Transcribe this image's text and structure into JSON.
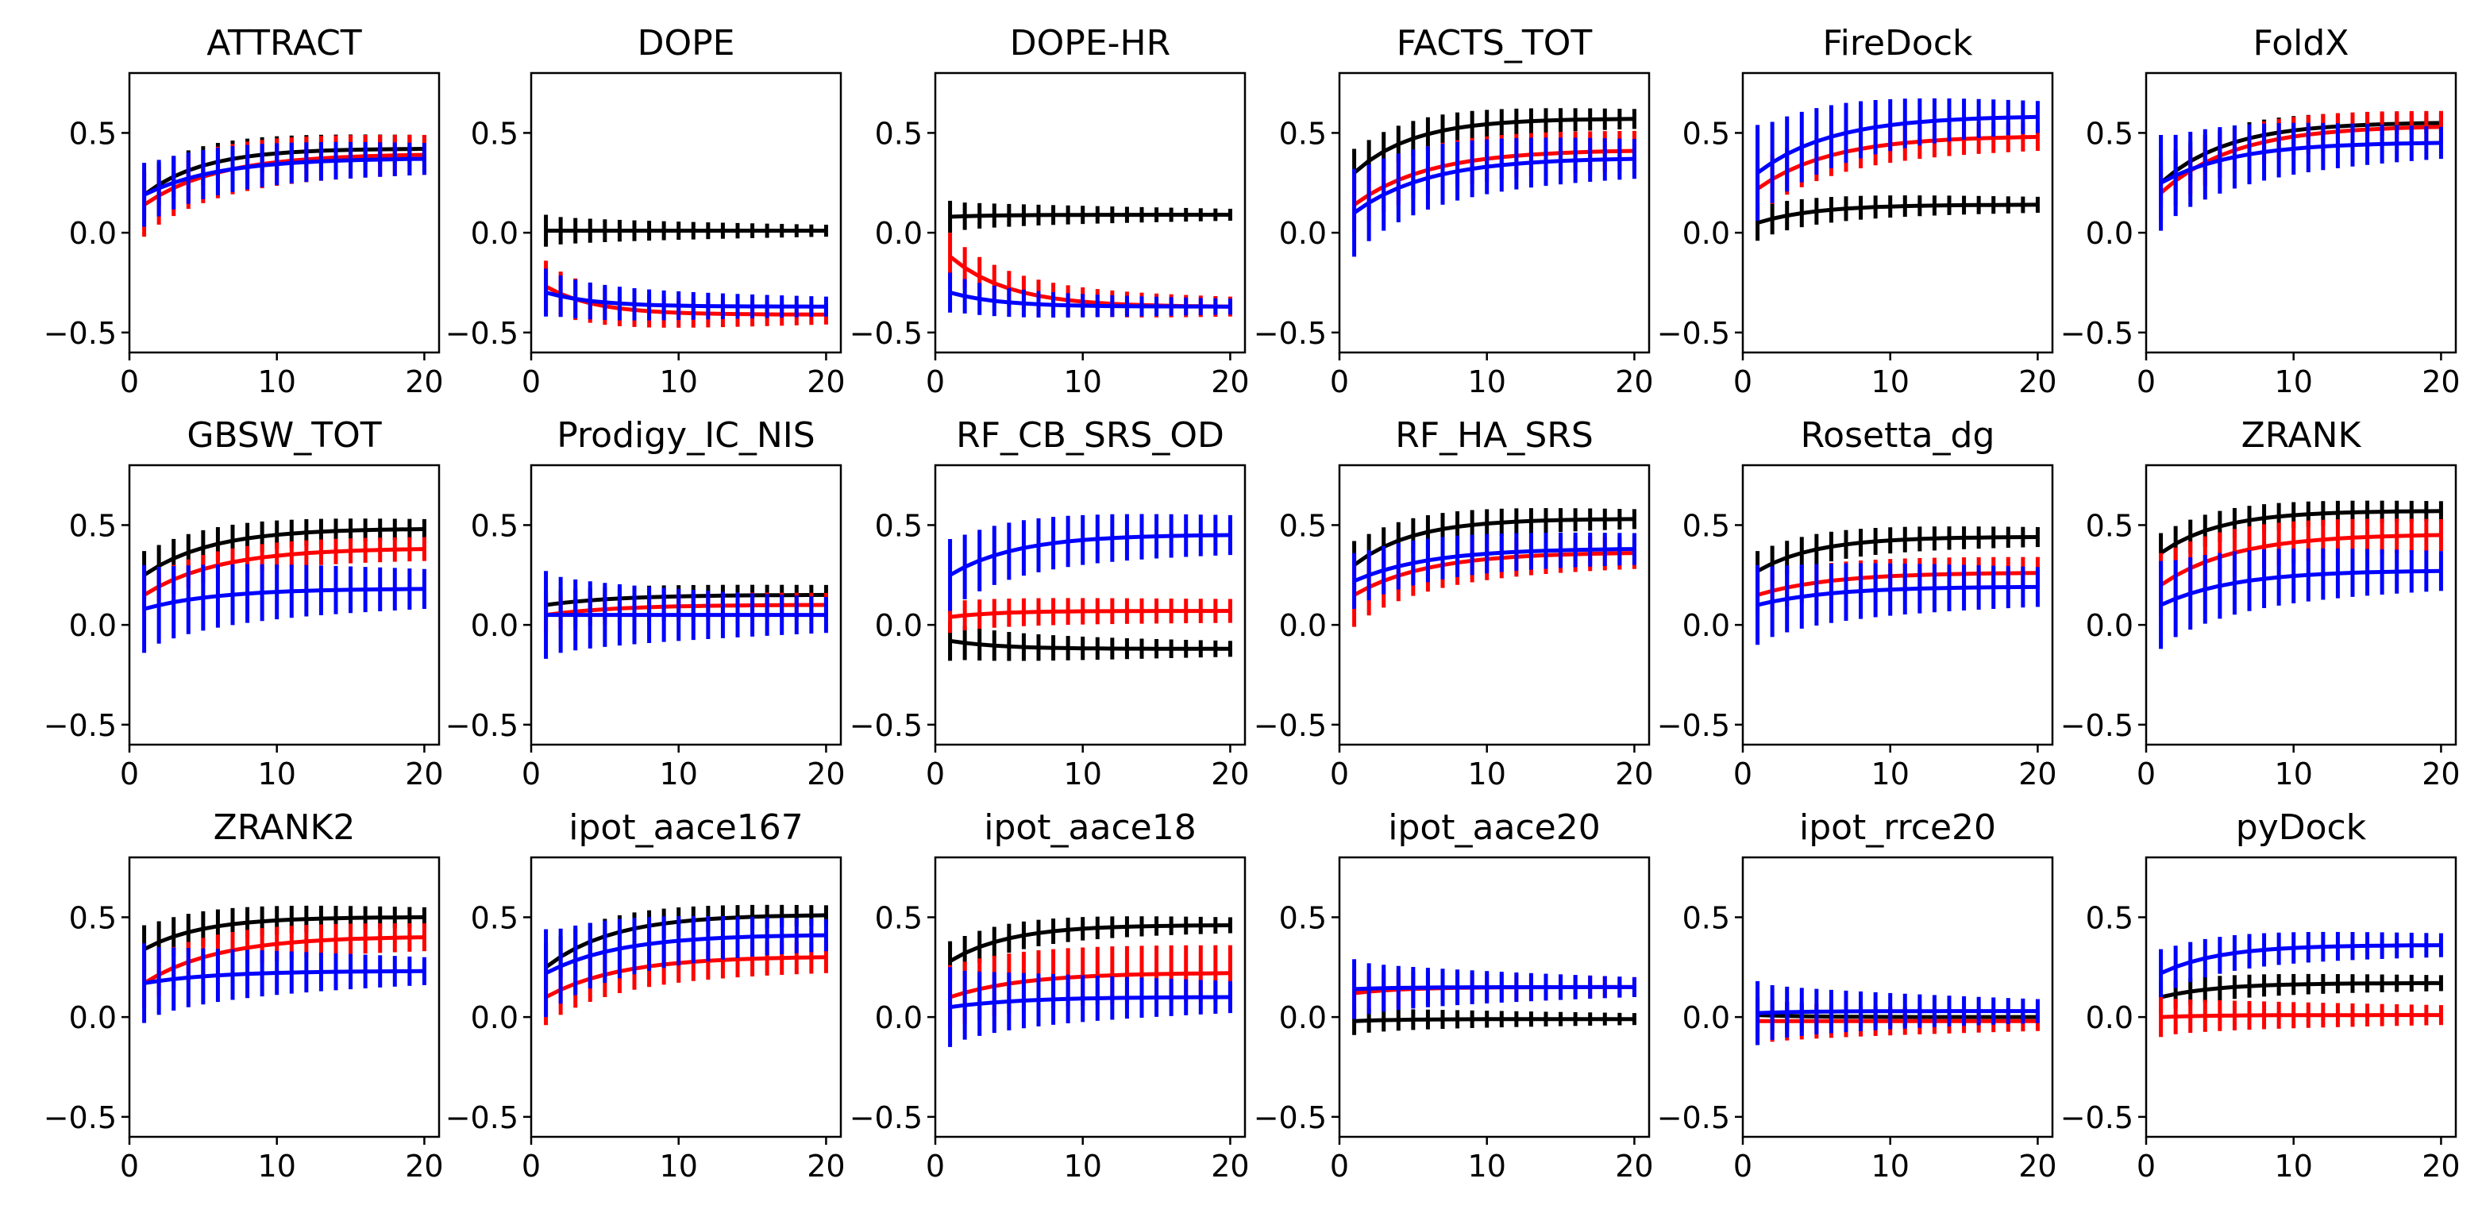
{
  "figure": {
    "layout": "3x6 grid of small line plots with error bars",
    "sharey_ticks": [
      "0.5",
      "0.0",
      "−0.5"
    ],
    "shared_x_ticks": [
      "0",
      "10",
      "20"
    ]
  },
  "chart_data": [
    {
      "type": "line",
      "title": "ATTRACT",
      "x": [
        1,
        20
      ],
      "xticks": [
        0,
        10,
        20
      ],
      "ylim": [
        -0.6,
        0.8
      ],
      "yticks": [
        -0.5,
        0.0,
        0.5
      ],
      "grid": false,
      "has_error_bars": true,
      "colors": [
        "#000000",
        "#ff0000",
        "#0000ff"
      ],
      "series": [
        {
          "color": "#000000",
          "start": 0.19,
          "end": 0.42,
          "k": 0.25,
          "err_start": 0.12,
          "err_end": 0.07
        },
        {
          "color": "#ff0000",
          "start": 0.14,
          "end": 0.39,
          "k": 0.2,
          "err_start": 0.16,
          "err_end": 0.1
        },
        {
          "color": "#0000ff",
          "start": 0.19,
          "end": 0.37,
          "k": 0.2,
          "err_start": 0.16,
          "err_end": 0.08
        }
      ]
    },
    {
      "type": "line",
      "title": "DOPE",
      "x": [
        1,
        20
      ],
      "xticks": [
        0,
        10,
        20
      ],
      "ylim": [
        -0.6,
        0.8
      ],
      "yticks": [
        -0.5,
        0.0,
        0.5
      ],
      "grid": false,
      "has_error_bars": true,
      "colors": [
        "#000000",
        "#ff0000",
        "#0000ff"
      ],
      "series": [
        {
          "color": "#000000",
          "start": 0.01,
          "end": 0.01,
          "k": 0.3,
          "err_start": 0.08,
          "err_end": 0.03
        },
        {
          "color": "#ff0000",
          "start": -0.27,
          "end": -0.41,
          "k": 0.3,
          "err_start": 0.13,
          "err_end": 0.05
        },
        {
          "color": "#0000ff",
          "start": -0.3,
          "end": -0.37,
          "k": 0.3,
          "err_start": 0.12,
          "err_end": 0.05
        }
      ]
    },
    {
      "type": "line",
      "title": "DOPE-HR",
      "x": [
        1,
        20
      ],
      "xticks": [
        0,
        10,
        20
      ],
      "ylim": [
        -0.6,
        0.8
      ],
      "yticks": [
        -0.5,
        0.0,
        0.5
      ],
      "grid": false,
      "has_error_bars": true,
      "colors": [
        "#000000",
        "#ff0000",
        "#0000ff"
      ],
      "series": [
        {
          "color": "#000000",
          "start": 0.08,
          "end": 0.09,
          "k": 0.3,
          "err_start": 0.08,
          "err_end": 0.03
        },
        {
          "color": "#ff0000",
          "start": -0.12,
          "end": -0.37,
          "k": 0.25,
          "err_start": 0.12,
          "err_end": 0.05
        },
        {
          "color": "#0000ff",
          "start": -0.3,
          "end": -0.37,
          "k": 0.3,
          "err_start": 0.1,
          "err_end": 0.04
        }
      ]
    },
    {
      "type": "line",
      "title": "FACTS_TOT",
      "x": [
        1,
        20
      ],
      "xticks": [
        0,
        10,
        20
      ],
      "ylim": [
        -0.6,
        0.8
      ],
      "yticks": [
        -0.5,
        0.0,
        0.5
      ],
      "grid": false,
      "has_error_bars": true,
      "colors": [
        "#000000",
        "#ff0000",
        "#0000ff"
      ],
      "series": [
        {
          "color": "#000000",
          "start": 0.3,
          "end": 0.57,
          "k": 0.25,
          "err_start": 0.12,
          "err_end": 0.05
        },
        {
          "color": "#ff0000",
          "start": 0.14,
          "end": 0.41,
          "k": 0.2,
          "err_start": 0.14,
          "err_end": 0.1
        },
        {
          "color": "#0000ff",
          "start": 0.1,
          "end": 0.37,
          "k": 0.2,
          "err_start": 0.22,
          "err_end": 0.1
        }
      ]
    },
    {
      "type": "line",
      "title": "FireDock",
      "x": [
        1,
        20
      ],
      "xticks": [
        0,
        10,
        20
      ],
      "ylim": [
        -0.6,
        0.8
      ],
      "yticks": [
        -0.5,
        0.0,
        0.5
      ],
      "grid": false,
      "has_error_bars": true,
      "colors": [
        "#000000",
        "#ff0000",
        "#0000ff"
      ],
      "series": [
        {
          "color": "#000000",
          "start": 0.05,
          "end": 0.14,
          "k": 0.25,
          "err_start": 0.09,
          "err_end": 0.04
        },
        {
          "color": "#ff0000",
          "start": 0.22,
          "end": 0.48,
          "k": 0.2,
          "err_start": 0.14,
          "err_end": 0.07
        },
        {
          "color": "#0000ff",
          "start": 0.3,
          "end": 0.58,
          "k": 0.2,
          "err_start": 0.24,
          "err_end": 0.08
        }
      ]
    },
    {
      "type": "line",
      "title": "FoldX",
      "x": [
        1,
        20
      ],
      "xticks": [
        0,
        10,
        20
      ],
      "ylim": [
        -0.6,
        0.8
      ],
      "yticks": [
        -0.5,
        0.0,
        0.5
      ],
      "grid": false,
      "has_error_bars": true,
      "colors": [
        "#000000",
        "#ff0000",
        "#0000ff"
      ],
      "series": [
        {
          "color": "#000000",
          "start": 0.25,
          "end": 0.55,
          "k": 0.22,
          "err_start": 0.12,
          "err_end": 0.05
        },
        {
          "color": "#ff0000",
          "start": 0.2,
          "end": 0.53,
          "k": 0.2,
          "err_start": 0.14,
          "err_end": 0.08
        },
        {
          "color": "#0000ff",
          "start": 0.25,
          "end": 0.45,
          "k": 0.2,
          "err_start": 0.24,
          "err_end": 0.08
        }
      ]
    },
    {
      "type": "line",
      "title": "GBSW_TOT",
      "x": [
        1,
        20
      ],
      "xticks": [
        0,
        10,
        20
      ],
      "ylim": [
        -0.6,
        0.8
      ],
      "yticks": [
        -0.5,
        0.0,
        0.5
      ],
      "grid": false,
      "has_error_bars": true,
      "colors": [
        "#000000",
        "#ff0000",
        "#0000ff"
      ],
      "series": [
        {
          "color": "#000000",
          "start": 0.25,
          "end": 0.48,
          "k": 0.22,
          "err_start": 0.12,
          "err_end": 0.05
        },
        {
          "color": "#ff0000",
          "start": 0.15,
          "end": 0.38,
          "k": 0.2,
          "err_start": 0.08,
          "err_end": 0.06
        },
        {
          "color": "#0000ff",
          "start": 0.08,
          "end": 0.18,
          "k": 0.2,
          "err_start": 0.22,
          "err_end": 0.1
        }
      ]
    },
    {
      "type": "line",
      "title": "Prodigy_IC_NIS",
      "x": [
        1,
        20
      ],
      "xticks": [
        0,
        10,
        20
      ],
      "ylim": [
        -0.6,
        0.8
      ],
      "yticks": [
        -0.5,
        0.0,
        0.5
      ],
      "grid": false,
      "has_error_bars": true,
      "colors": [
        "#000000",
        "#ff0000",
        "#0000ff"
      ],
      "series": [
        {
          "color": "#000000",
          "start": 0.1,
          "end": 0.15,
          "k": 0.2,
          "err_start": 0.07,
          "err_end": 0.05
        },
        {
          "color": "#ff0000",
          "start": 0.05,
          "end": 0.1,
          "k": 0.2,
          "err_start": 0.09,
          "err_end": 0.06
        },
        {
          "color": "#0000ff",
          "start": 0.05,
          "end": 0.05,
          "k": 0.2,
          "err_start": 0.22,
          "err_end": 0.09
        }
      ]
    },
    {
      "type": "line",
      "title": "RF_CB_SRS_OD",
      "x": [
        1,
        20
      ],
      "xticks": [
        0,
        10,
        20
      ],
      "ylim": [
        -0.6,
        0.8
      ],
      "yticks": [
        -0.5,
        0.0,
        0.5
      ],
      "grid": false,
      "has_error_bars": true,
      "colors": [
        "#000000",
        "#ff0000",
        "#0000ff"
      ],
      "series": [
        {
          "color": "#000000",
          "start": -0.08,
          "end": -0.12,
          "k": 0.3,
          "err_start": 0.1,
          "err_end": 0.04
        },
        {
          "color": "#ff0000",
          "start": 0.04,
          "end": 0.07,
          "k": 0.3,
          "err_start": 0.08,
          "err_end": 0.06
        },
        {
          "color": "#0000ff",
          "start": 0.25,
          "end": 0.45,
          "k": 0.22,
          "err_start": 0.18,
          "err_end": 0.1
        }
      ]
    },
    {
      "type": "line",
      "title": "RF_HA_SRS",
      "x": [
        1,
        20
      ],
      "xticks": [
        0,
        10,
        20
      ],
      "ylim": [
        -0.6,
        0.8
      ],
      "yticks": [
        -0.5,
        0.0,
        0.5
      ],
      "grid": false,
      "has_error_bars": true,
      "colors": [
        "#000000",
        "#ff0000",
        "#0000ff"
      ],
      "series": [
        {
          "color": "#000000",
          "start": 0.3,
          "end": 0.53,
          "k": 0.25,
          "err_start": 0.12,
          "err_end": 0.05
        },
        {
          "color": "#ff0000",
          "start": 0.15,
          "end": 0.36,
          "k": 0.2,
          "err_start": 0.16,
          "err_end": 0.08
        },
        {
          "color": "#0000ff",
          "start": 0.22,
          "end": 0.38,
          "k": 0.2,
          "err_start": 0.14,
          "err_end": 0.08
        }
      ]
    },
    {
      "type": "line",
      "title": "Rosetta_dg",
      "x": [
        1,
        20
      ],
      "xticks": [
        0,
        10,
        20
      ],
      "ylim": [
        -0.6,
        0.8
      ],
      "yticks": [
        -0.5,
        0.0,
        0.5
      ],
      "grid": false,
      "has_error_bars": true,
      "colors": [
        "#000000",
        "#ff0000",
        "#0000ff"
      ],
      "series": [
        {
          "color": "#000000",
          "start": 0.27,
          "end": 0.44,
          "k": 0.25,
          "err_start": 0.1,
          "err_end": 0.05
        },
        {
          "color": "#ff0000",
          "start": 0.15,
          "end": 0.26,
          "k": 0.2,
          "err_start": 0.1,
          "err_end": 0.08
        },
        {
          "color": "#0000ff",
          "start": 0.1,
          "end": 0.19,
          "k": 0.2,
          "err_start": 0.2,
          "err_end": 0.1
        }
      ]
    },
    {
      "type": "line",
      "title": "ZRANK",
      "x": [
        1,
        20
      ],
      "xticks": [
        0,
        10,
        20
      ],
      "ylim": [
        -0.6,
        0.8
      ],
      "yticks": [
        -0.5,
        0.0,
        0.5
      ],
      "grid": false,
      "has_error_bars": true,
      "colors": [
        "#000000",
        "#ff0000",
        "#0000ff"
      ],
      "series": [
        {
          "color": "#000000",
          "start": 0.36,
          "end": 0.57,
          "k": 0.25,
          "err_start": 0.1,
          "err_end": 0.05
        },
        {
          "color": "#ff0000",
          "start": 0.2,
          "end": 0.45,
          "k": 0.2,
          "err_start": 0.16,
          "err_end": 0.08
        },
        {
          "color": "#0000ff",
          "start": 0.1,
          "end": 0.27,
          "k": 0.2,
          "err_start": 0.22,
          "err_end": 0.1
        }
      ]
    },
    {
      "type": "line",
      "title": "ZRANK2",
      "x": [
        1,
        20
      ],
      "xticks": [
        0,
        10,
        20
      ],
      "ylim": [
        -0.6,
        0.8
      ],
      "yticks": [
        -0.5,
        0.0,
        0.5
      ],
      "grid": false,
      "has_error_bars": true,
      "colors": [
        "#000000",
        "#ff0000",
        "#0000ff"
      ],
      "series": [
        {
          "color": "#000000",
          "start": 0.34,
          "end": 0.5,
          "k": 0.25,
          "err_start": 0.12,
          "err_end": 0.05
        },
        {
          "color": "#ff0000",
          "start": 0.17,
          "end": 0.4,
          "k": 0.2,
          "err_start": 0.12,
          "err_end": 0.07
        },
        {
          "color": "#0000ff",
          "start": 0.17,
          "end": 0.23,
          "k": 0.2,
          "err_start": 0.2,
          "err_end": 0.07
        }
      ]
    },
    {
      "type": "line",
      "title": "ipot_aace167",
      "x": [
        1,
        20
      ],
      "xticks": [
        0,
        10,
        20
      ],
      "ylim": [
        -0.6,
        0.8
      ],
      "yticks": [
        -0.5,
        0.0,
        0.5
      ],
      "grid": false,
      "has_error_bars": true,
      "colors": [
        "#000000",
        "#ff0000",
        "#0000ff"
      ],
      "series": [
        {
          "color": "#000000",
          "start": 0.25,
          "end": 0.51,
          "k": 0.22,
          "err_start": 0.12,
          "err_end": 0.05
        },
        {
          "color": "#ff0000",
          "start": 0.1,
          "end": 0.3,
          "k": 0.2,
          "err_start": 0.14,
          "err_end": 0.08
        },
        {
          "color": "#0000ff",
          "start": 0.22,
          "end": 0.41,
          "k": 0.2,
          "err_start": 0.22,
          "err_end": 0.08
        }
      ]
    },
    {
      "type": "line",
      "title": "ipot_aace18",
      "x": [
        1,
        20
      ],
      "xticks": [
        0,
        10,
        20
      ],
      "ylim": [
        -0.6,
        0.8
      ],
      "yticks": [
        -0.5,
        0.0,
        0.5
      ],
      "grid": false,
      "has_error_bars": true,
      "colors": [
        "#000000",
        "#ff0000",
        "#0000ff"
      ],
      "series": [
        {
          "color": "#000000",
          "start": 0.28,
          "end": 0.46,
          "k": 0.25,
          "err_start": 0.1,
          "err_end": 0.04
        },
        {
          "color": "#ff0000",
          "start": 0.1,
          "end": 0.22,
          "k": 0.2,
          "err_start": 0.16,
          "err_end": 0.14
        },
        {
          "color": "#0000ff",
          "start": 0.05,
          "end": 0.1,
          "k": 0.2,
          "err_start": 0.2,
          "err_end": 0.08
        }
      ]
    },
    {
      "type": "line",
      "title": "ipot_aace20",
      "x": [
        1,
        20
      ],
      "xticks": [
        0,
        10,
        20
      ],
      "ylim": [
        -0.6,
        0.8
      ],
      "yticks": [
        -0.5,
        0.0,
        0.5
      ],
      "grid": false,
      "has_error_bars": true,
      "colors": [
        "#000000",
        "#ff0000",
        "#0000ff"
      ],
      "series": [
        {
          "color": "#000000",
          "start": -0.02,
          "end": -0.01,
          "k": 0.3,
          "err_start": 0.07,
          "err_end": 0.03
        },
        {
          "color": "#ff0000",
          "start": 0.12,
          "end": 0.15,
          "k": 0.3,
          "err_start": 0.12,
          "err_end": 0.05
        },
        {
          "color": "#0000ff",
          "start": 0.14,
          "end": 0.15,
          "k": 0.3,
          "err_start": 0.15,
          "err_end": 0.05
        }
      ]
    },
    {
      "type": "line",
      "title": "ipot_rrce20",
      "x": [
        1,
        20
      ],
      "xticks": [
        0,
        10,
        20
      ],
      "ylim": [
        -0.6,
        0.8
      ],
      "yticks": [
        -0.5,
        0.0,
        0.5
      ],
      "grid": false,
      "has_error_bars": true,
      "colors": [
        "#000000",
        "#ff0000",
        "#0000ff"
      ],
      "series": [
        {
          "color": "#000000",
          "start": 0.01,
          "end": 0.0,
          "k": 0.3,
          "err_start": 0.09,
          "err_end": 0.03
        },
        {
          "color": "#ff0000",
          "start": -0.02,
          "end": -0.02,
          "k": 0.3,
          "err_start": 0.12,
          "err_end": 0.05
        },
        {
          "color": "#0000ff",
          "start": 0.02,
          "end": 0.03,
          "k": 0.3,
          "err_start": 0.16,
          "err_end": 0.06
        }
      ]
    },
    {
      "type": "line",
      "title": "pyDock",
      "x": [
        1,
        20
      ],
      "xticks": [
        0,
        10,
        20
      ],
      "ylim": [
        -0.6,
        0.8
      ],
      "yticks": [
        -0.5,
        0.0,
        0.5
      ],
      "grid": false,
      "has_error_bars": true,
      "colors": [
        "#000000",
        "#ff0000",
        "#0000ff"
      ],
      "series": [
        {
          "color": "#000000",
          "start": 0.1,
          "end": 0.17,
          "k": 0.25,
          "err_start": 0.08,
          "err_end": 0.04
        },
        {
          "color": "#ff0000",
          "start": 0.0,
          "end": 0.01,
          "k": 0.3,
          "err_start": 0.1,
          "err_end": 0.05
        },
        {
          "color": "#0000ff",
          "start": 0.22,
          "end": 0.36,
          "k": 0.25,
          "err_start": 0.12,
          "err_end": 0.06
        }
      ]
    }
  ]
}
